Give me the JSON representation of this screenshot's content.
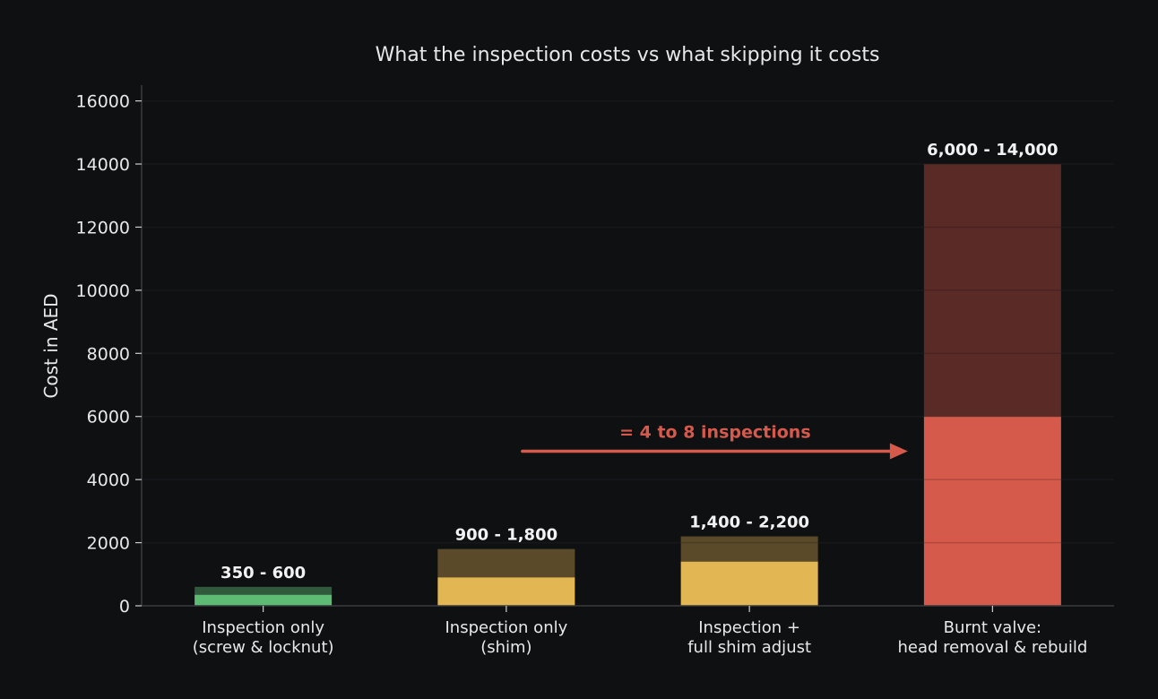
{
  "chart_data": {
    "type": "bar",
    "title": "What the inspection costs vs what skipping it costs",
    "xlabel": "",
    "ylabel": "Cost in AED",
    "ylim": [
      0,
      16500
    ],
    "yticks": [
      0,
      2000,
      4000,
      6000,
      8000,
      10000,
      12000,
      14000,
      16000
    ],
    "grid": true,
    "categories": [
      [
        "Inspection only",
        "(screw & locknut)"
      ],
      [
        "Inspection only",
        "(shim)"
      ],
      [
        "Inspection +",
        "full shim adjust"
      ],
      [
        "Burnt valve:",
        "head removal & rebuild"
      ]
    ],
    "series": [
      {
        "low": [
          350,
          900,
          1400,
          6000
        ],
        "high": [
          600,
          1800,
          2200,
          14000
        ]
      }
    ],
    "data_labels": [
      "350 - 600",
      "900 - 1,800",
      "1,400 - 2,200",
      "6,000 - 14,000"
    ],
    "colors": {
      "low": [
        "#5dbb73",
        "#e2b652",
        "#e2b652",
        "#d65a4b"
      ],
      "high": [
        "#2f5a3c",
        "#5a4a2a",
        "#5a4a2a",
        "#5a2a27"
      ]
    },
    "annotation": {
      "text": "= 4 to 8 inspections",
      "color": "#d65a4b",
      "arrow_y": 4900,
      "from_category": 1,
      "to_category": 3
    }
  }
}
